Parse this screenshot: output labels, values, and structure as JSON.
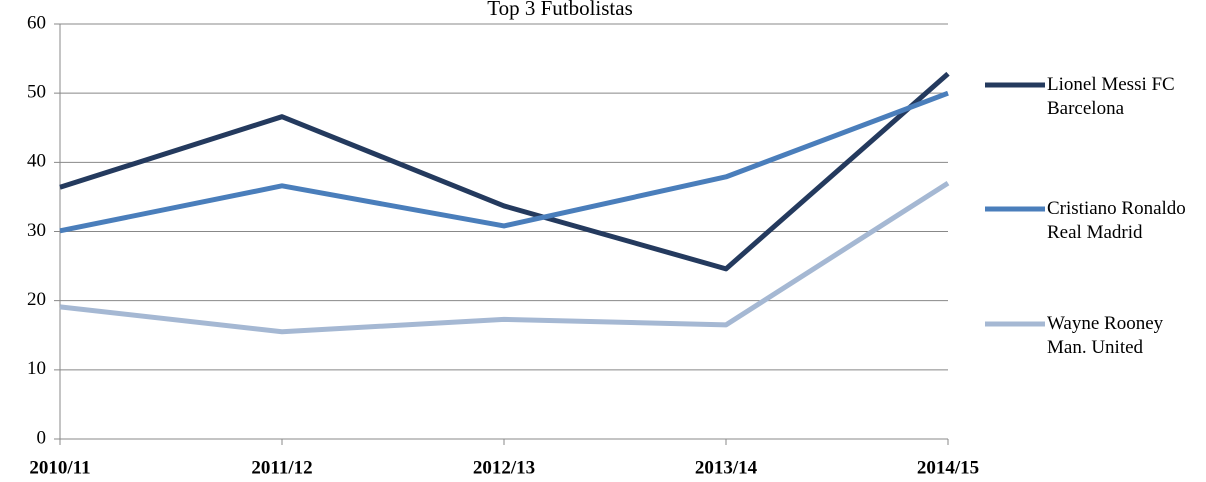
{
  "chart_data": {
    "type": "line",
    "title": "Top 3 Futbolistas",
    "categories": [
      "2010/11",
      "2011/12",
      "2012/13",
      "2013/14",
      "2014/15"
    ],
    "series": [
      {
        "name": "Lionel Messi FC Barcelona",
        "color": "#243a5e",
        "values": [
          36.4,
          46.6,
          33.7,
          24.6,
          52.8
        ]
      },
      {
        "name": "Cristiano Ronaldo Real Madrid",
        "color": "#4a7ebb",
        "values": [
          30.1,
          36.6,
          30.8,
          37.9,
          50.0
        ]
      },
      {
        "name": "Wayne Rooney Man. United",
        "color": "#a5b8d3",
        "values": [
          19.1,
          15.5,
          17.3,
          16.5,
          37.0
        ]
      }
    ],
    "ylim": [
      0,
      60
    ],
    "yticks": [
      0,
      10,
      20,
      30,
      40,
      50,
      60
    ],
    "grid": true,
    "legend": "right"
  }
}
